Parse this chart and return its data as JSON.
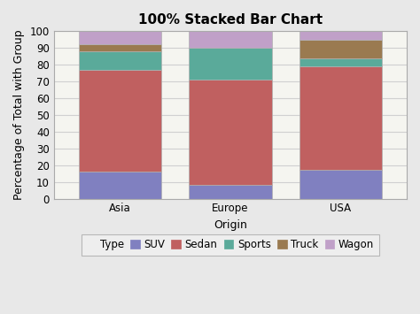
{
  "title": "100% Stacked Bar Chart",
  "xlabel": "Origin",
  "ylabel": "Percentage of Total with Group",
  "categories": [
    "Asia",
    "Europe",
    "USA"
  ],
  "series": {
    "SUV": [
      16.0,
      8.0,
      17.0
    ],
    "Sedan": [
      61.0,
      63.0,
      62.0
    ],
    "Sports": [
      11.0,
      19.0,
      5.0
    ],
    "Truck": [
      4.0,
      0.0,
      11.0
    ],
    "Wagon": [
      8.0,
      10.0,
      5.0
    ]
  },
  "colors": {
    "SUV": "#8080c0",
    "Sedan": "#c06060",
    "Sports": "#5aaa9a",
    "Truck": "#9a7a50",
    "Wagon": "#c0a0c8"
  },
  "ylim": [
    0,
    100
  ],
  "yticks": [
    0,
    10,
    20,
    30,
    40,
    50,
    60,
    70,
    80,
    90,
    100
  ],
  "background_color": "#e8e8e8",
  "plot_background": "#f5f5f0",
  "grid_color": "#d0d0d0",
  "title_fontsize": 11,
  "axis_label_fontsize": 9,
  "tick_fontsize": 8.5,
  "legend_fontsize": 8.5,
  "bar_width": 0.75,
  "legend_label": "Type",
  "bar_edge_color": "#b0b0b0",
  "bar_edge_width": 0.5
}
